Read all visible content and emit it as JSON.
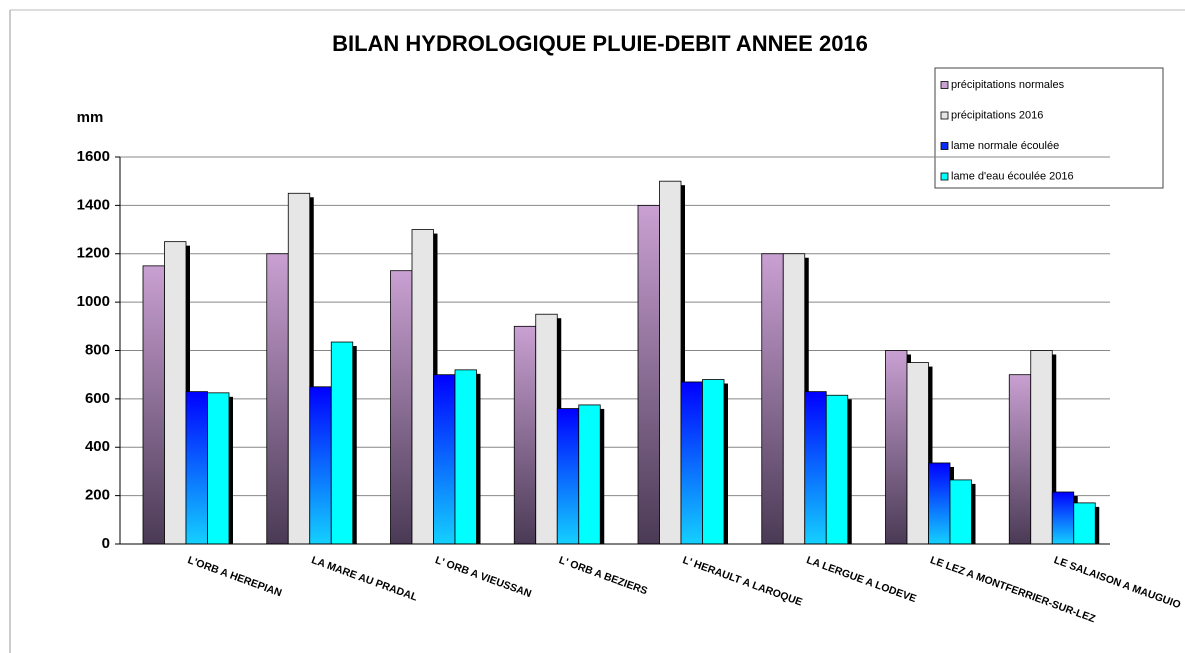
{
  "chart_data": {
    "type": "bar",
    "title": "BILAN HYDROLOGIQUE PLUIE-DEBIT ANNEE 2016",
    "y_label": "mm",
    "categories": [
      "L'ORB A HEREPIAN",
      "LA MARE AU PRADAL",
      "L' ORB A VIEUSSAN",
      "L' ORB A BEZIERS",
      "L' HERAULT A LAROQUE",
      "LA LERGUE A LODEVE",
      "LE LEZ A MONTFERRIER-SUR-LEZ",
      "LE SALAISON A MAUGUIO"
    ],
    "series": [
      {
        "name": "précipitations normales",
        "color": "#c9a0d2",
        "values": [
          1150,
          1200,
          1130,
          900,
          1400,
          1200,
          800,
          700
        ]
      },
      {
        "name": "précipitations 2016",
        "color": "#e6e6e6",
        "values": [
          1250,
          1450,
          1300,
          950,
          1500,
          1200,
          750,
          800
        ]
      },
      {
        "name": "lame normale écoulée",
        "color": "#0a2cff",
        "values": [
          630,
          650,
          700,
          560,
          670,
          630,
          335,
          215
        ]
      },
      {
        "name": "lame d'eau écoulée 2016",
        "color": "#00ffff",
        "values": [
          625,
          835,
          720,
          575,
          680,
          615,
          265,
          170
        ]
      }
    ],
    "ylim": [
      0,
      1600
    ],
    "yticks": [
      0,
      200,
      400,
      600,
      800,
      1000,
      1200,
      1400,
      1600
    ],
    "grid": true,
    "legend": "top-right"
  }
}
